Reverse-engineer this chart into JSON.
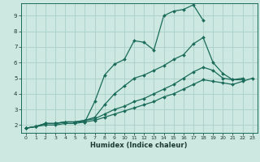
{
  "xlabel": "Humidex (Indice chaleur)",
  "xlim": [
    -0.5,
    23.5
  ],
  "ylim": [
    1.5,
    9.8
  ],
  "xticks": [
    0,
    1,
    2,
    3,
    4,
    5,
    6,
    7,
    8,
    9,
    10,
    11,
    12,
    13,
    14,
    15,
    16,
    17,
    18,
    19,
    20,
    21,
    22,
    23
  ],
  "yticks": [
    2,
    3,
    4,
    5,
    6,
    7,
    8,
    9
  ],
  "bg_color": "#cce8e0",
  "grid_color": "#aad0c8",
  "line_color": "#1a6b5a",
  "series": [
    {
      "x": [
        0,
        1,
        2,
        3,
        4,
        5,
        6,
        7,
        8,
        9,
        10,
        11,
        12,
        13,
        14,
        15,
        16,
        17,
        18
      ],
      "y": [
        1.8,
        1.9,
        2.1,
        2.1,
        2.2,
        2.2,
        2.2,
        3.5,
        5.2,
        5.9,
        6.2,
        7.4,
        7.3,
        6.8,
        9.0,
        9.3,
        9.4,
        9.7,
        8.7
      ]
    },
    {
      "x": [
        0,
        1,
        2,
        3,
        4,
        5,
        6,
        7,
        8,
        9,
        10,
        11,
        12,
        13,
        14,
        15,
        16,
        17,
        18,
        19,
        20,
        21,
        22
      ],
      "y": [
        1.8,
        1.9,
        2.1,
        2.1,
        2.2,
        2.2,
        2.3,
        2.5,
        3.3,
        4.0,
        4.5,
        5.0,
        5.2,
        5.5,
        5.8,
        6.2,
        6.5,
        7.2,
        7.6,
        6.0,
        5.3,
        4.9,
        5.0
      ]
    },
    {
      "x": [
        0,
        1,
        2,
        3,
        4,
        5,
        6,
        7,
        8,
        9,
        10,
        11,
        12,
        13,
        14,
        15,
        16,
        17,
        18,
        19,
        20,
        21,
        22
      ],
      "y": [
        1.8,
        1.9,
        2.1,
        2.1,
        2.2,
        2.2,
        2.3,
        2.4,
        2.7,
        3.0,
        3.2,
        3.5,
        3.7,
        4.0,
        4.3,
        4.6,
        5.0,
        5.4,
        5.7,
        5.5,
        5.0,
        4.9,
        4.9
      ]
    },
    {
      "x": [
        0,
        1,
        2,
        3,
        4,
        5,
        6,
        7,
        8,
        9,
        10,
        11,
        12,
        13,
        14,
        15,
        16,
        17,
        18,
        19,
        20,
        21,
        22,
        23
      ],
      "y": [
        1.8,
        1.9,
        2.0,
        2.0,
        2.1,
        2.1,
        2.2,
        2.3,
        2.5,
        2.7,
        2.9,
        3.1,
        3.3,
        3.5,
        3.8,
        4.0,
        4.3,
        4.6,
        4.9,
        4.8,
        4.7,
        4.6,
        4.8,
        5.0
      ]
    }
  ]
}
